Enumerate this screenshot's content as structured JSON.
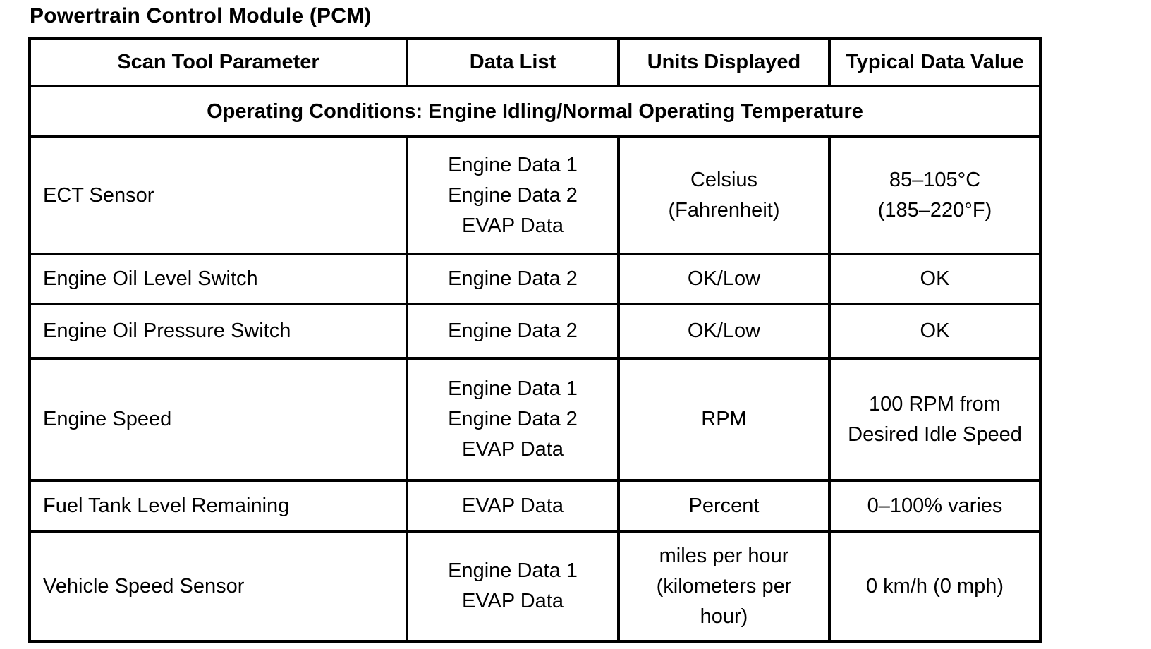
{
  "title": "Powertrain Control Module (PCM)",
  "colors": {
    "border": "#000000",
    "text": "#000000",
    "background": "#ffffff"
  },
  "table": {
    "columns": [
      "Scan Tool Parameter",
      "Data List",
      "Units Displayed",
      "Typical Data Value"
    ],
    "section_header": "Operating Conditions: Engine Idling/Normal Operating Temperature",
    "rows": [
      {
        "parameter": "ECT Sensor",
        "data_list": [
          "Engine Data 1",
          "Engine Data 2",
          "EVAP Data"
        ],
        "units_displayed": [
          "Celsius",
          "(Fahrenheit)"
        ],
        "typical_data_value": [
          "85–105°C",
          "(185–220°F)"
        ]
      },
      {
        "parameter": "Engine Oil Level Switch",
        "data_list": "Engine Data 2",
        "units_displayed": "OK/Low",
        "typical_data_value": "OK"
      },
      {
        "parameter": "Engine Oil Pressure Switch",
        "data_list": "Engine Data 2",
        "units_displayed": "OK/Low",
        "typical_data_value": "OK"
      },
      {
        "parameter": "Engine Speed",
        "data_list": [
          "Engine Data 1",
          "Engine Data 2",
          "EVAP Data"
        ],
        "units_displayed": "RPM",
        "typical_data_value": [
          "100 RPM from",
          "Desired Idle Speed"
        ]
      },
      {
        "parameter": "Fuel Tank Level Remaining",
        "data_list": "EVAP Data",
        "units_displayed": "Percent",
        "typical_data_value": "0–100% varies"
      },
      {
        "parameter": "Vehicle Speed Sensor",
        "data_list": [
          "Engine Data 1",
          "EVAP Data"
        ],
        "units_displayed": [
          "miles per hour",
          "(kilometers per",
          "hour)"
        ],
        "typical_data_value": "0 km/h (0 mph)"
      }
    ]
  }
}
